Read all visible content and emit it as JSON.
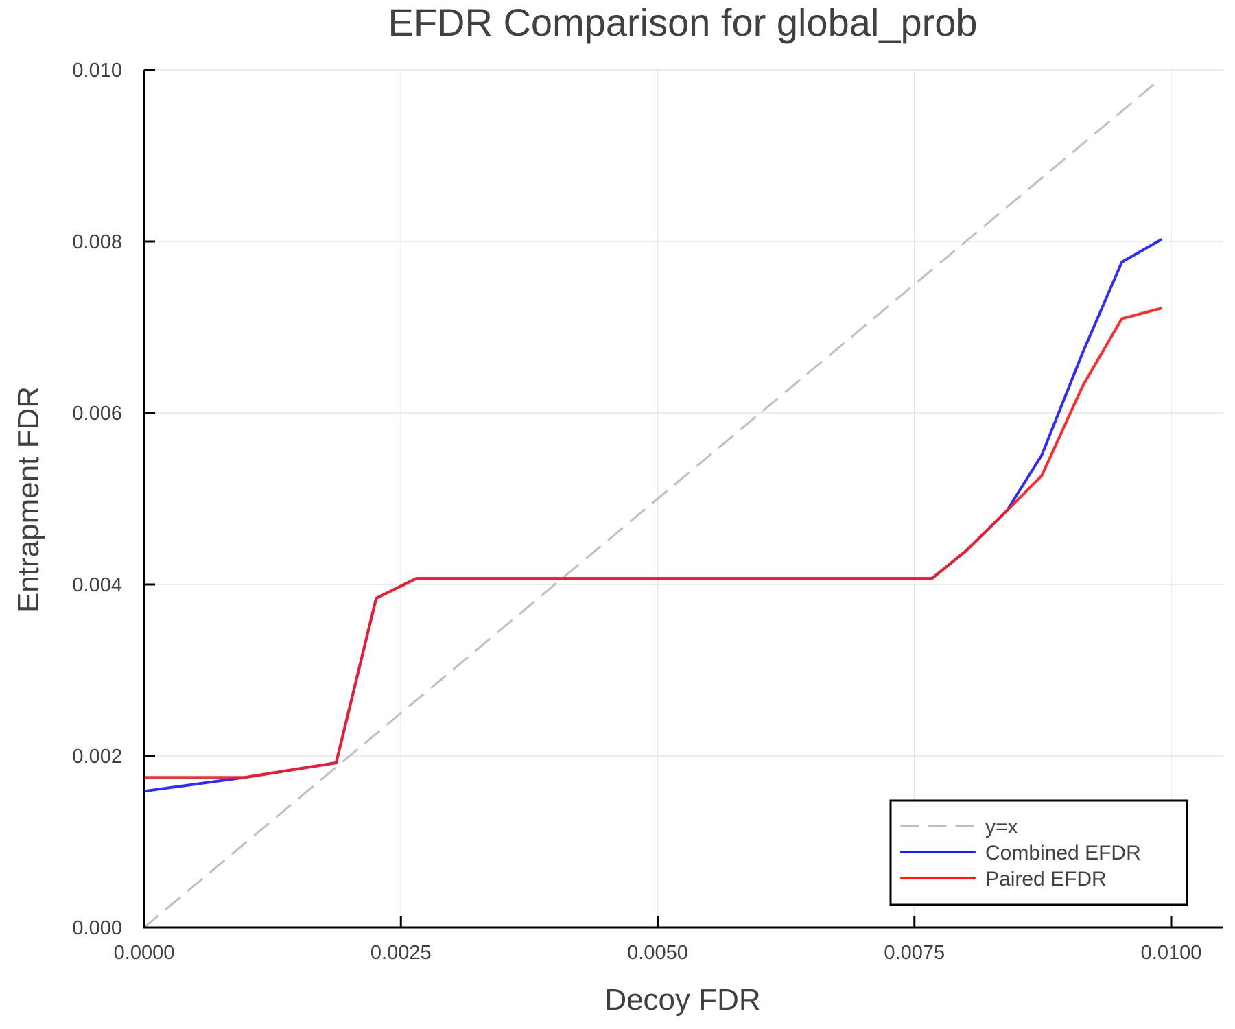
{
  "chart_data": {
    "type": "line",
    "title": "EFDR Comparison for global_prob",
    "xlabel": "Decoy FDR",
    "ylabel": "Entrapment FDR",
    "xlim": [
      0,
      0.0104
    ],
    "ylim": [
      0,
      0.01
    ],
    "x_ticks": [
      0,
      0.0025,
      0.005,
      0.0075,
      0.01
    ],
    "x_tick_labels": [
      "0.0000",
      "0.0025",
      "0.0050",
      "0.0075",
      "0.0100"
    ],
    "y_ticks": [
      0,
      0.002,
      0.004,
      0.006,
      0.008,
      0.01
    ],
    "y_tick_labels": [
      "0.000",
      "0.002",
      "0.004",
      "0.006",
      "0.008",
      "0.010"
    ],
    "grid": true,
    "legend_position": "bottom-right",
    "series": [
      {
        "name": "y=x",
        "color": "#bfbfbf",
        "style": "dashed",
        "x": [
          0,
          0.0099
        ],
        "y": [
          0,
          0.0099
        ]
      },
      {
        "name": "Combined EFDR",
        "color": "#1a1aff",
        "style": "solid",
        "x": [
          0,
          0.00098,
          0.00187,
          0.00226,
          0.00265,
          0.00767,
          0.008,
          0.0084,
          0.00874,
          0.00914,
          0.00952,
          0.0099
        ],
        "y": [
          0.00159,
          0.00175,
          0.00192,
          0.00384,
          0.00407,
          0.00407,
          0.00439,
          0.00486,
          0.00551,
          0.00671,
          0.00776,
          0.00802
        ]
      },
      {
        "name": "Paired EFDR",
        "color": "#ff1a1a",
        "style": "solid",
        "x": [
          0,
          0.00098,
          0.00187,
          0.00226,
          0.00265,
          0.00767,
          0.008,
          0.0084,
          0.00874,
          0.00914,
          0.00952,
          0.0099
        ],
        "y": [
          0.00175,
          0.00175,
          0.00192,
          0.00384,
          0.00407,
          0.00407,
          0.00439,
          0.00486,
          0.00527,
          0.00632,
          0.0071,
          0.00722
        ]
      }
    ]
  },
  "legend": {
    "items": [
      {
        "label": "y=x",
        "color": "#bfbfbf",
        "style": "dashed"
      },
      {
        "label": "Combined EFDR",
        "color": "#1a1aff",
        "style": "solid"
      },
      {
        "label": "Paired EFDR",
        "color": "#ff1a1a",
        "style": "solid"
      }
    ]
  }
}
